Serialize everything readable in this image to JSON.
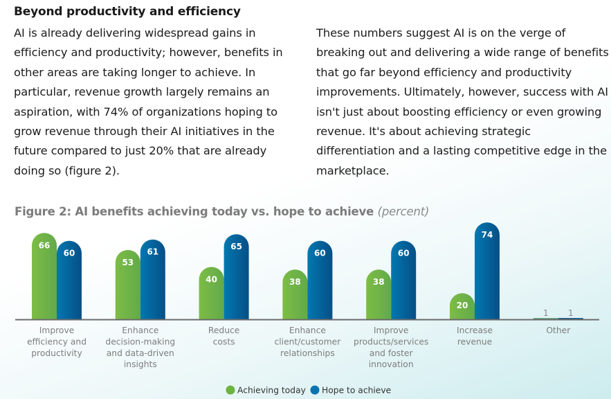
{
  "heading": "Beyond productivity and efficiency",
  "col1": "AI is already delivering widespread gains in efficiency and productivity; however, benefits in other areas are taking longer to achieve. In particular, revenue growth largely remains an aspiration, with 74% of organizations hoping to grow revenue through their AI initiatives in the future compared to just 20% that are already doing so (figure 2).",
  "col2": "These numbers suggest AI is on the verge of breaking out and delivering a wide range of benefits that go far beyond efficiency and productivity improvements. Ultimately, however, success with AI isn't just about boosting efficiency or even growing revenue. It's about achieving strategic differentiation and a lasting competitive edge in the marketplace.",
  "chart_data": {
    "type": "bar",
    "title": "Figure 2: AI benefits achieving today vs. hope to achieve",
    "subtitle": "(percent)",
    "categories": [
      [
        "Improve",
        "efficiency and",
        "productivity"
      ],
      [
        "Enhance",
        "decision-making",
        "and data-driven",
        "insights"
      ],
      [
        "Reduce",
        "costs"
      ],
      [
        "Enhance",
        "client/customer",
        "relationships"
      ],
      [
        "Improve",
        "products/services",
        "and foster",
        "innovation"
      ],
      [
        "Increase",
        "revenue"
      ],
      [
        "Other"
      ]
    ],
    "series": [
      {
        "name": "Achieving today",
        "color": "#6db33f",
        "values": [
          66,
          53,
          40,
          38,
          38,
          20,
          1
        ]
      },
      {
        "name": "Hope to achieve",
        "color": "#0a6aa6",
        "values": [
          60,
          61,
          65,
          60,
          60,
          74,
          1
        ]
      }
    ],
    "ylim": [
      0,
      80
    ],
    "legend": "bottom-center",
    "grid": false
  }
}
